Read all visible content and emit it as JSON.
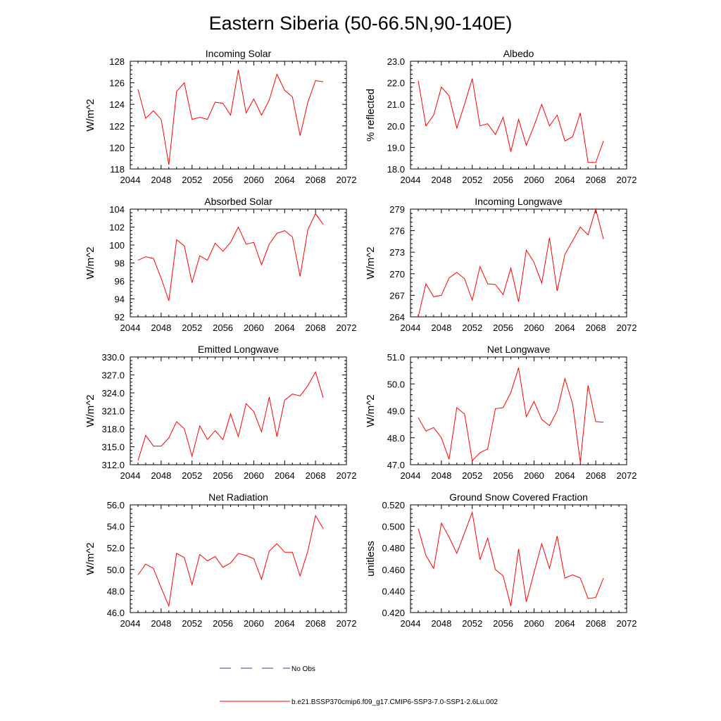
{
  "title": "Eastern Siberia (50-66.5N,90-140E)",
  "legend": {
    "items": [
      {
        "label": "No Obs",
        "style": "dashed",
        "color": "#3a3aa0"
      },
      {
        "label": "b.e21.BSSP370cmip6.f09_g17.CMIP6-SSP3-7.0-SSP1-2.6Lu.002",
        "style": "solid",
        "color": "#ff0000"
      }
    ]
  },
  "chart_data": [
    {
      "type": "line",
      "title": "Incoming Solar",
      "ylabel": "W/m^2",
      "xlim": [
        2044,
        2072
      ],
      "ylim": [
        118,
        128
      ],
      "xticks": [
        2044,
        2048,
        2052,
        2056,
        2060,
        2064,
        2068,
        2072
      ],
      "yticks": [
        118,
        120,
        122,
        124,
        126,
        128
      ],
      "ytick_decimals": 0,
      "color": "#ff0000",
      "x": [
        2045,
        2046,
        2047,
        2048,
        2049,
        2050,
        2051,
        2052,
        2053,
        2054,
        2055,
        2056,
        2057,
        2058,
        2059,
        2060,
        2061,
        2062,
        2063,
        2064,
        2065,
        2066,
        2067,
        2068,
        2069
      ],
      "y": [
        125.4,
        122.7,
        123.4,
        122.6,
        118.4,
        125.2,
        126.0,
        122.6,
        122.8,
        122.6,
        124.2,
        124.1,
        123.0,
        127.2,
        123.2,
        124.5,
        123.0,
        124.4,
        126.8,
        125.3,
        124.7,
        121.1,
        124.2,
        126.2,
        126.1
      ]
    },
    {
      "type": "line",
      "title": "Albedo",
      "ylabel": "% reflected",
      "xlim": [
        2044,
        2072
      ],
      "ylim": [
        18,
        23
      ],
      "xticks": [
        2044,
        2048,
        2052,
        2056,
        2060,
        2064,
        2068,
        2072
      ],
      "yticks": [
        18,
        19,
        20,
        21,
        22,
        23
      ],
      "ytick_decimals": 1,
      "color": "#ff0000",
      "x": [
        2045,
        2046,
        2047,
        2048,
        2049,
        2050,
        2051,
        2052,
        2053,
        2054,
        2055,
        2056,
        2057,
        2058,
        2059,
        2060,
        2061,
        2062,
        2063,
        2064,
        2065,
        2066,
        2067,
        2068,
        2069
      ],
      "y": [
        22.1,
        20.0,
        20.5,
        21.8,
        21.4,
        19.9,
        21.0,
        22.2,
        20.0,
        20.1,
        19.6,
        20.4,
        18.8,
        20.3,
        19.1,
        20.0,
        21.0,
        20.0,
        20.5,
        19.3,
        19.5,
        20.6,
        18.3,
        18.3,
        19.3
      ]
    },
    {
      "type": "line",
      "title": "Absorbed Solar",
      "ylabel": "W/m^2",
      "xlim": [
        2044,
        2072
      ],
      "ylim": [
        92,
        104
      ],
      "xticks": [
        2044,
        2048,
        2052,
        2056,
        2060,
        2064,
        2068,
        2072
      ],
      "yticks": [
        92,
        94,
        96,
        98,
        100,
        102,
        104
      ],
      "ytick_decimals": 0,
      "color": "#ff0000",
      "x": [
        2045,
        2046,
        2047,
        2048,
        2049,
        2050,
        2051,
        2052,
        2053,
        2054,
        2055,
        2056,
        2057,
        2058,
        2059,
        2060,
        2061,
        2062,
        2063,
        2064,
        2065,
        2066,
        2067,
        2068,
        2069
      ],
      "y": [
        98.3,
        98.7,
        98.5,
        96.3,
        93.8,
        100.6,
        99.9,
        95.8,
        98.8,
        98.3,
        100.2,
        99.3,
        100.3,
        102.0,
        100.1,
        100.3,
        97.8,
        100.1,
        101.3,
        101.6,
        100.9,
        96.5,
        101.7,
        103.5,
        102.3
      ]
    },
    {
      "type": "line",
      "title": "Incoming Longwave",
      "ylabel": "W/m^2",
      "xlim": [
        2044,
        2072
      ],
      "ylim": [
        264,
        279
      ],
      "xticks": [
        2044,
        2048,
        2052,
        2056,
        2060,
        2064,
        2068,
        2072
      ],
      "yticks": [
        264,
        267,
        270,
        273,
        276,
        279
      ],
      "ytick_decimals": 0,
      "color": "#ff0000",
      "x": [
        2045,
        2046,
        2047,
        2048,
        2049,
        2050,
        2051,
        2052,
        2053,
        2054,
        2055,
        2056,
        2057,
        2058,
        2059,
        2060,
        2061,
        2062,
        2063,
        2064,
        2065,
        2066,
        2067,
        2068,
        2069
      ],
      "y": [
        264.0,
        268.6,
        266.8,
        267.0,
        269.4,
        270.2,
        269.3,
        266.3,
        271.0,
        268.6,
        268.5,
        267.1,
        270.8,
        266.1,
        273.3,
        271.6,
        268.7,
        275.0,
        267.6,
        272.7,
        274.6,
        276.5,
        275.4,
        279.0,
        274.8
      ]
    },
    {
      "type": "line",
      "title": "Emitted Longwave",
      "ylabel": "W/m^2",
      "xlim": [
        2044,
        2072
      ],
      "ylim": [
        312,
        330
      ],
      "xticks": [
        2044,
        2048,
        2052,
        2056,
        2060,
        2064,
        2068,
        2072
      ],
      "yticks": [
        312,
        315,
        318,
        321,
        324,
        327,
        330
      ],
      "ytick_decimals": 1,
      "color": "#ff0000",
      "x": [
        2045,
        2046,
        2047,
        2048,
        2049,
        2050,
        2051,
        2052,
        2053,
        2054,
        2055,
        2056,
        2057,
        2058,
        2059,
        2060,
        2061,
        2062,
        2063,
        2064,
        2065,
        2066,
        2067,
        2068,
        2069
      ],
      "y": [
        312.7,
        316.9,
        315.1,
        315.1,
        316.5,
        319.2,
        318.0,
        313.4,
        318.5,
        316.2,
        317.7,
        316.2,
        320.5,
        316.7,
        322.2,
        320.9,
        317.5,
        323.3,
        316.7,
        322.8,
        323.8,
        323.5,
        325.2,
        327.5,
        323.2
      ]
    },
    {
      "type": "line",
      "title": "Net Longwave",
      "ylabel": "W/m^2",
      "xlim": [
        2044,
        2072
      ],
      "ylim": [
        47,
        51
      ],
      "xticks": [
        2044,
        2048,
        2052,
        2056,
        2060,
        2064,
        2068,
        2072
      ],
      "yticks": [
        47,
        48,
        49,
        50,
        51
      ],
      "ytick_decimals": 1,
      "color": "#ff0000",
      "x": [
        2045,
        2046,
        2047,
        2048,
        2049,
        2050,
        2051,
        2052,
        2053,
        2054,
        2055,
        2056,
        2057,
        2058,
        2059,
        2060,
        2061,
        2062,
        2063,
        2064,
        2065,
        2066,
        2067,
        2068,
        2069
      ],
      "y": [
        48.75,
        48.25,
        48.38,
        48.0,
        47.2,
        49.12,
        48.88,
        47.15,
        47.45,
        47.58,
        49.08,
        49.12,
        49.68,
        50.6,
        48.78,
        49.35,
        48.68,
        48.45,
        49.0,
        50.2,
        49.25,
        47.08,
        49.95,
        48.6,
        48.58
      ]
    },
    {
      "type": "line",
      "title": "Net Radiation",
      "ylabel": "W/m^2",
      "xlim": [
        2044,
        2072
      ],
      "ylim": [
        46,
        56
      ],
      "xticks": [
        2044,
        2048,
        2052,
        2056,
        2060,
        2064,
        2068,
        2072
      ],
      "yticks": [
        46,
        48,
        50,
        52,
        54,
        56
      ],
      "ytick_decimals": 1,
      "color": "#ff0000",
      "x": [
        2045,
        2046,
        2047,
        2048,
        2049,
        2050,
        2051,
        2052,
        2053,
        2054,
        2055,
        2056,
        2057,
        2058,
        2059,
        2060,
        2061,
        2062,
        2063,
        2064,
        2065,
        2066,
        2067,
        2068,
        2069
      ],
      "y": [
        49.5,
        50.5,
        50.1,
        48.3,
        46.6,
        51.5,
        51.1,
        48.6,
        51.4,
        50.8,
        51.2,
        50.2,
        50.6,
        51.5,
        51.3,
        51.0,
        49.1,
        51.7,
        52.4,
        51.6,
        51.6,
        49.4,
        51.7,
        55.0,
        53.8
      ]
    },
    {
      "type": "line",
      "title": "Ground Snow Covered Fraction",
      "ylabel": "unitless",
      "xlim": [
        2044,
        2072
      ],
      "ylim": [
        0.42,
        0.52
      ],
      "xticks": [
        2044,
        2048,
        2052,
        2056,
        2060,
        2064,
        2068,
        2072
      ],
      "yticks": [
        0.42,
        0.44,
        0.46,
        0.48,
        0.5,
        0.52
      ],
      "ytick_decimals": 3,
      "color": "#ff0000",
      "x": [
        2045,
        2046,
        2047,
        2048,
        2049,
        2050,
        2051,
        2052,
        2053,
        2054,
        2055,
        2056,
        2057,
        2058,
        2059,
        2060,
        2061,
        2062,
        2063,
        2064,
        2065,
        2066,
        2067,
        2068,
        2069
      ],
      "y": [
        0.498,
        0.473,
        0.461,
        0.503,
        0.49,
        0.475,
        0.494,
        0.513,
        0.469,
        0.489,
        0.46,
        0.454,
        0.426,
        0.479,
        0.43,
        0.457,
        0.484,
        0.461,
        0.491,
        0.452,
        0.455,
        0.452,
        0.433,
        0.434,
        0.452
      ]
    }
  ]
}
